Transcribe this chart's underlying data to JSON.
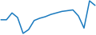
{
  "values": [
    0.3,
    0.3,
    1.2,
    0.6,
    -1.5,
    -1.0,
    0.2,
    0.5,
    0.7,
    1.0,
    1.2,
    1.4,
    1.5,
    1.6,
    0.8,
    -0.8,
    2.8,
    2.2
  ],
  "line_color": "#1a7abf",
  "line_width": 1.1,
  "background_color": "#ffffff"
}
